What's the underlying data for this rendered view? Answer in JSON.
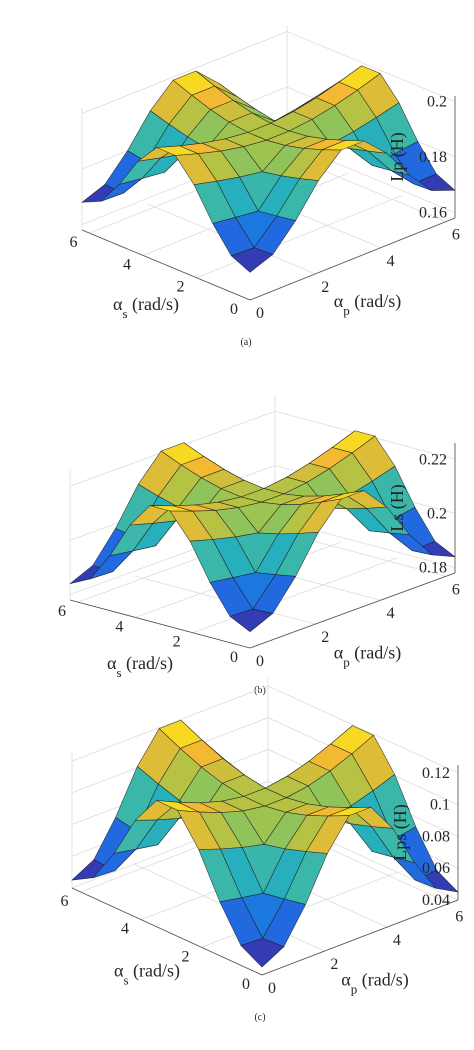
{
  "chart_data": [
    {
      "type": "surface",
      "panel_label": "(a)",
      "zlabel": "Lp (H)",
      "xlabel": "α_s (rad/s)",
      "ylabel": "α_p (rad/s)",
      "x_ticks": [
        "0",
        "2",
        "4",
        "6"
      ],
      "y_ticks": [
        "0",
        "2",
        "4",
        "6"
      ],
      "z_ticks": [
        "0.16",
        "0.18",
        "0.2"
      ],
      "xlim": [
        0,
        6.28
      ],
      "ylim": [
        0,
        6.28
      ],
      "zlim": [
        0.158,
        0.202
      ],
      "z_base": 0.168,
      "z_amplitude": 0.032,
      "colormap": "parula"
    },
    {
      "type": "surface",
      "panel_label": "(b)",
      "zlabel": "Ls (H)",
      "xlabel": "α_s (rad/s)",
      "ylabel": "α_p (rad/s)",
      "x_ticks": [
        "0",
        "2",
        "4",
        "6"
      ],
      "y_ticks": [
        "0",
        "2",
        "4",
        "6"
      ],
      "z_ticks": [
        "0.18",
        "0.2",
        "0.22"
      ],
      "xlim": [
        0,
        6.28
      ],
      "ylim": [
        0,
        6.28
      ],
      "zlim": [
        0.178,
        0.226
      ],
      "z_base": 0.184,
      "z_amplitude": 0.038,
      "colormap": "parula"
    },
    {
      "type": "surface",
      "panel_label": "(c)",
      "zlabel": "Lps (H)",
      "xlabel": "α_s (rad/s)",
      "ylabel": "α_p (rad/s)",
      "x_ticks": [
        "0",
        "2",
        "4",
        "6"
      ],
      "y_ticks": [
        "0",
        "2",
        "4",
        "6"
      ],
      "z_ticks": [
        "0.04",
        "0.06",
        "0.08",
        "0.1",
        "0.12"
      ],
      "xlim": [
        0,
        6.28
      ],
      "ylim": [
        0,
        6.28
      ],
      "zlim": [
        0.04,
        0.125
      ],
      "z_base": 0.045,
      "z_amplitude": 0.077,
      "colormap": "parula"
    }
  ]
}
